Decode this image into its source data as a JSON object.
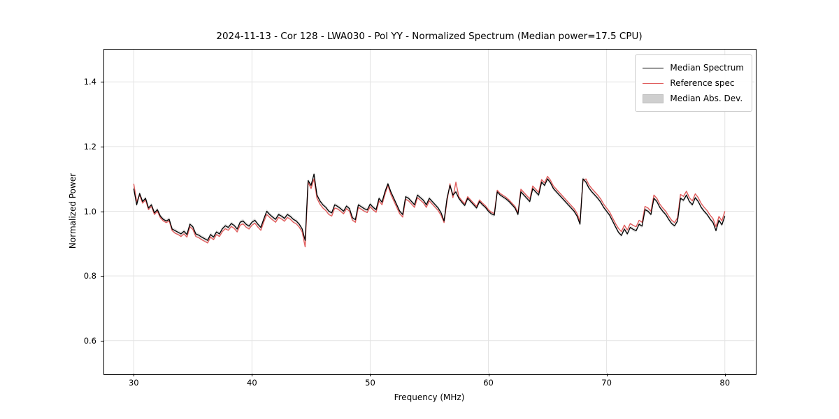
{
  "figure": {
    "title": "2024-11-13 - Cor 128 - LWA030 - Pol YY - Normalized Spectrum (Median power=17.5 CPU)",
    "xlabel": "Frequency (MHz)",
    "ylabel": "Normalized Power"
  },
  "colors": {
    "median_line": "#000000",
    "reference_line": "#e05c5c",
    "mad_band": "#bfbfbf",
    "grid": "#e3e3e3"
  },
  "legend": {
    "items": [
      {
        "label": "Median Spectrum",
        "type": "line",
        "color": "#000000"
      },
      {
        "label": "Reference spec",
        "type": "line",
        "color": "#e05c5c"
      },
      {
        "label": "Median Abs. Dev.",
        "type": "patch",
        "color": "#cfcfcf"
      }
    ]
  },
  "chart_data": {
    "type": "line",
    "title": "2024-11-13 - Cor 128 - LWA030 - Pol YY - Normalized Spectrum (Median power=17.5 CPU)",
    "xlabel": "Frequency (MHz)",
    "ylabel": "Normalized Power",
    "xlim": [
      27.5,
      82.5
    ],
    "ylim": [
      0.5,
      1.5
    ],
    "xticks": [
      30,
      40,
      50,
      60,
      70,
      80
    ],
    "yticks": [
      0.6,
      0.8,
      1.0,
      1.2,
      1.4
    ],
    "grid": true,
    "legend_position": "upper right",
    "x_start": 30.0,
    "x_step": 0.25,
    "mad_band_halfwidth": 0.006,
    "series": [
      {
        "name": "Median Spectrum",
        "color": "#000000",
        "values": [
          1.07,
          1.02,
          1.055,
          1.03,
          1.04,
          1.01,
          1.02,
          0.995,
          1.005,
          0.985,
          0.975,
          0.97,
          0.975,
          0.945,
          0.94,
          0.935,
          0.93,
          0.938,
          0.928,
          0.96,
          0.952,
          0.93,
          0.926,
          0.92,
          0.915,
          0.91,
          0.928,
          0.92,
          0.936,
          0.93,
          0.946,
          0.955,
          0.95,
          0.962,
          0.956,
          0.945,
          0.966,
          0.97,
          0.96,
          0.954,
          0.966,
          0.972,
          0.96,
          0.95,
          0.976,
          1.0,
          0.99,
          0.982,
          0.975,
          0.99,
          0.985,
          0.978,
          0.99,
          0.984,
          0.975,
          0.97,
          0.96,
          0.945,
          0.91,
          1.095,
          1.08,
          1.115,
          1.05,
          1.032,
          1.02,
          1.012,
          1.0,
          0.995,
          1.02,
          1.015,
          1.008,
          1.0,
          1.016,
          1.008,
          0.98,
          0.974,
          1.02,
          1.014,
          1.008,
          1.004,
          1.022,
          1.012,
          1.005,
          1.04,
          1.028,
          1.06,
          1.085,
          1.06,
          1.04,
          1.02,
          1.0,
          0.99,
          1.045,
          1.04,
          1.03,
          1.02,
          1.05,
          1.042,
          1.034,
          1.02,
          1.04,
          1.03,
          1.02,
          1.01,
          0.995,
          0.97,
          1.04,
          1.08,
          1.05,
          1.06,
          1.04,
          1.028,
          1.018,
          1.04,
          1.03,
          1.02,
          1.01,
          1.03,
          1.02,
          1.012,
          1.0,
          0.992,
          0.988,
          1.06,
          1.05,
          1.044,
          1.038,
          1.03,
          1.02,
          1.01,
          0.99,
          1.06,
          1.05,
          1.04,
          1.03,
          1.07,
          1.06,
          1.05,
          1.09,
          1.08,
          1.1,
          1.088,
          1.07,
          1.06,
          1.05,
          1.04,
          1.03,
          1.02,
          1.01,
          1.0,
          0.985,
          0.96,
          1.1,
          1.09,
          1.072,
          1.06,
          1.05,
          1.04,
          1.028,
          1.012,
          1.0,
          0.988,
          0.97,
          0.952,
          0.935,
          0.925,
          0.945,
          0.93,
          0.95,
          0.944,
          0.94,
          0.96,
          0.954,
          1.005,
          1.0,
          0.99,
          1.04,
          1.03,
          1.012,
          1.0,
          0.99,
          0.975,
          0.962,
          0.955,
          0.97,
          1.04,
          1.034,
          1.05,
          1.03,
          1.02,
          1.042,
          1.03,
          1.012,
          1.0,
          0.99,
          0.976,
          0.965,
          0.94,
          0.972,
          0.958,
          0.985
        ]
      },
      {
        "name": "Reference spec",
        "color": "#e05c5c",
        "values": [
          1.085,
          1.03,
          1.05,
          1.025,
          1.035,
          1.005,
          1.015,
          0.99,
          1.0,
          0.98,
          0.97,
          0.965,
          0.97,
          0.94,
          0.932,
          0.928,
          0.922,
          0.93,
          0.92,
          0.952,
          0.944,
          0.922,
          0.918,
          0.912,
          0.907,
          0.902,
          0.92,
          0.912,
          0.928,
          0.922,
          0.937,
          0.946,
          0.941,
          0.953,
          0.947,
          0.936,
          0.957,
          0.961,
          0.951,
          0.945,
          0.957,
          0.963,
          0.951,
          0.941,
          0.967,
          0.99,
          0.981,
          0.973,
          0.966,
          0.981,
          0.976,
          0.969,
          0.981,
          0.975,
          0.966,
          0.961,
          0.951,
          0.936,
          0.89,
          1.09,
          1.07,
          1.1,
          1.04,
          1.022,
          1.01,
          1.002,
          0.99,
          0.985,
          1.01,
          1.007,
          1.0,
          0.992,
          1.008,
          1.0,
          0.972,
          0.966,
          1.012,
          1.006,
          1.0,
          0.996,
          1.014,
          1.004,
          0.997,
          1.032,
          1.02,
          1.052,
          1.08,
          1.052,
          1.032,
          1.012,
          0.992,
          0.982,
          1.037,
          1.032,
          1.022,
          1.012,
          1.042,
          1.034,
          1.026,
          1.012,
          1.032,
          1.022,
          1.012,
          1.002,
          0.987,
          0.965,
          1.032,
          1.085,
          1.042,
          1.09,
          1.045,
          1.033,
          1.023,
          1.045,
          1.035,
          1.025,
          1.015,
          1.035,
          1.025,
          1.017,
          1.005,
          0.997,
          0.993,
          1.065,
          1.055,
          1.049,
          1.043,
          1.035,
          1.025,
          1.015,
          0.995,
          1.068,
          1.058,
          1.048,
          1.038,
          1.078,
          1.068,
          1.058,
          1.098,
          1.088,
          1.108,
          1.096,
          1.078,
          1.068,
          1.058,
          1.048,
          1.038,
          1.028,
          1.018,
          1.008,
          0.993,
          0.968,
          1.095,
          1.1,
          1.082,
          1.07,
          1.06,
          1.05,
          1.038,
          1.022,
          1.01,
          0.998,
          0.98,
          0.962,
          0.947,
          0.937,
          0.957,
          0.942,
          0.962,
          0.956,
          0.952,
          0.972,
          0.966,
          1.015,
          1.01,
          1.0,
          1.05,
          1.04,
          1.022,
          1.01,
          1.0,
          0.985,
          0.972,
          0.965,
          0.98,
          1.052,
          1.046,
          1.062,
          1.042,
          1.032,
          1.054,
          1.042,
          1.024,
          1.012,
          1.002,
          0.988,
          0.977,
          0.952,
          0.984,
          0.97,
          1.0
        ]
      }
    ]
  }
}
